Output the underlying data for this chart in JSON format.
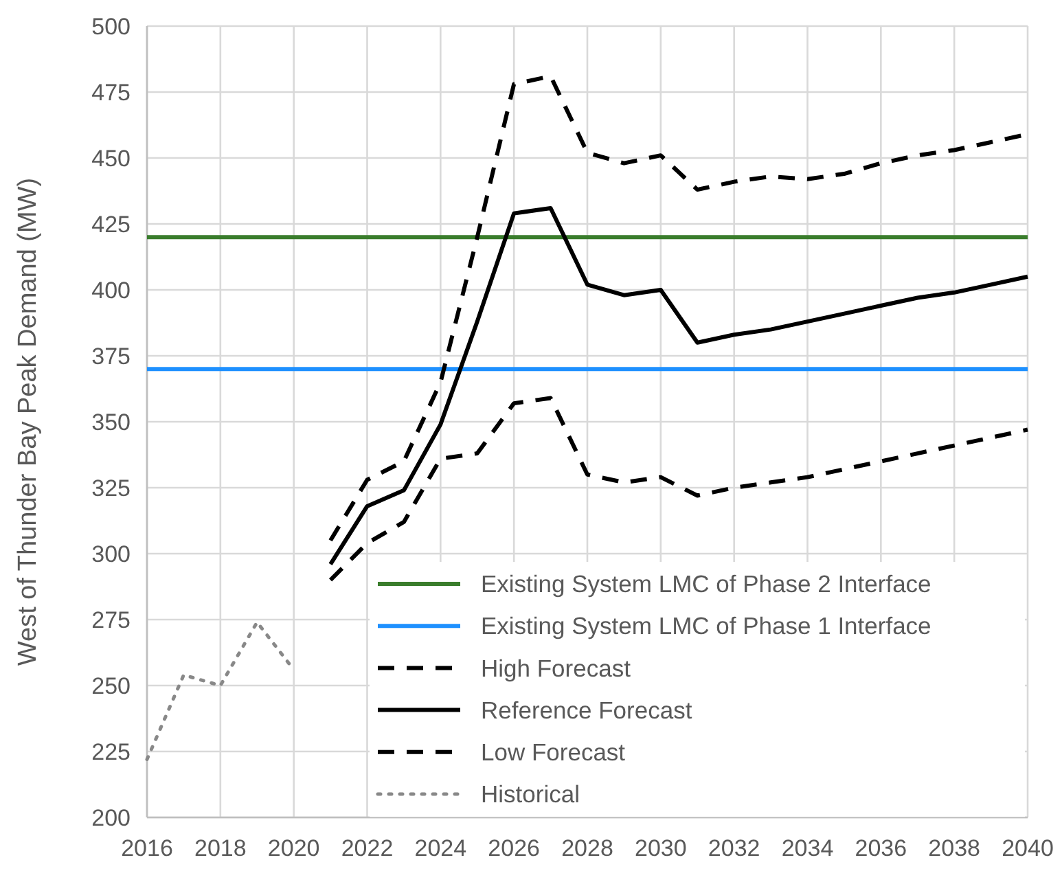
{
  "chart_data": {
    "type": "line",
    "ylabel": "West of Thunder Bay Peak Demand (MW)",
    "xlim": [
      2016,
      2040
    ],
    "xticks": [
      2016,
      2018,
      2020,
      2022,
      2024,
      2026,
      2028,
      2030,
      2032,
      2034,
      2036,
      2038,
      2040
    ],
    "ylim": [
      200,
      500
    ],
    "yticks": [
      200,
      225,
      250,
      275,
      300,
      325,
      350,
      375,
      400,
      425,
      450,
      475,
      500
    ],
    "grid": true,
    "legend": "bottom right",
    "marker": "none",
    "series": [
      {
        "name": "Existing System LMC of Phase 2 Interface",
        "color": "#3a7d2c",
        "line_style": "solid",
        "x": [
          2016,
          2040
        ],
        "values": [
          420,
          420
        ]
      },
      {
        "name": "Existing System LMC of Phase 1 Interface",
        "color": "#1e90ff",
        "line_style": "solid",
        "x": [
          2016,
          2040
        ],
        "values": [
          370,
          370
        ]
      },
      {
        "name": "High Forecast",
        "color": "#000000",
        "line_style": "dashed",
        "x": [
          2021,
          2022,
          2023,
          2024,
          2025,
          2026,
          2027,
          2028,
          2029,
          2030,
          2031,
          2032,
          2033,
          2034,
          2035,
          2036,
          2037,
          2038,
          2039,
          2040
        ],
        "values": [
          305,
          328,
          335,
          365,
          420,
          478,
          481,
          452,
          448,
          451,
          438,
          441,
          443,
          442,
          444,
          448,
          451,
          453,
          456,
          459
        ]
      },
      {
        "name": "Reference Forecast",
        "color": "#000000",
        "line_style": "solid",
        "x": [
          2021,
          2022,
          2023,
          2024,
          2025,
          2026,
          2027,
          2028,
          2029,
          2030,
          2031,
          2032,
          2033,
          2034,
          2035,
          2036,
          2037,
          2038,
          2039,
          2040
        ],
        "values": [
          296,
          318,
          324,
          349,
          388,
          429,
          431,
          402,
          398,
          400,
          380,
          383,
          385,
          388,
          391,
          394,
          397,
          399,
          402,
          405
        ]
      },
      {
        "name": "Low Forecast",
        "color": "#000000",
        "line_style": "dashed",
        "x": [
          2021,
          2022,
          2023,
          2024,
          2025,
          2026,
          2027,
          2028,
          2029,
          2030,
          2031,
          2032,
          2033,
          2034,
          2035,
          2036,
          2037,
          2038,
          2039,
          2040
        ],
        "values": [
          290,
          304,
          312,
          336,
          338,
          357,
          359,
          330,
          327,
          329,
          322,
          325,
          327,
          329,
          332,
          335,
          338,
          341,
          344,
          347
        ]
      },
      {
        "name": "Historical",
        "color": "#888888",
        "line_style": "dotted",
        "x": [
          2016,
          2017,
          2018,
          2019,
          2020
        ],
        "values": [
          222,
          254,
          250,
          274,
          256
        ]
      }
    ]
  }
}
